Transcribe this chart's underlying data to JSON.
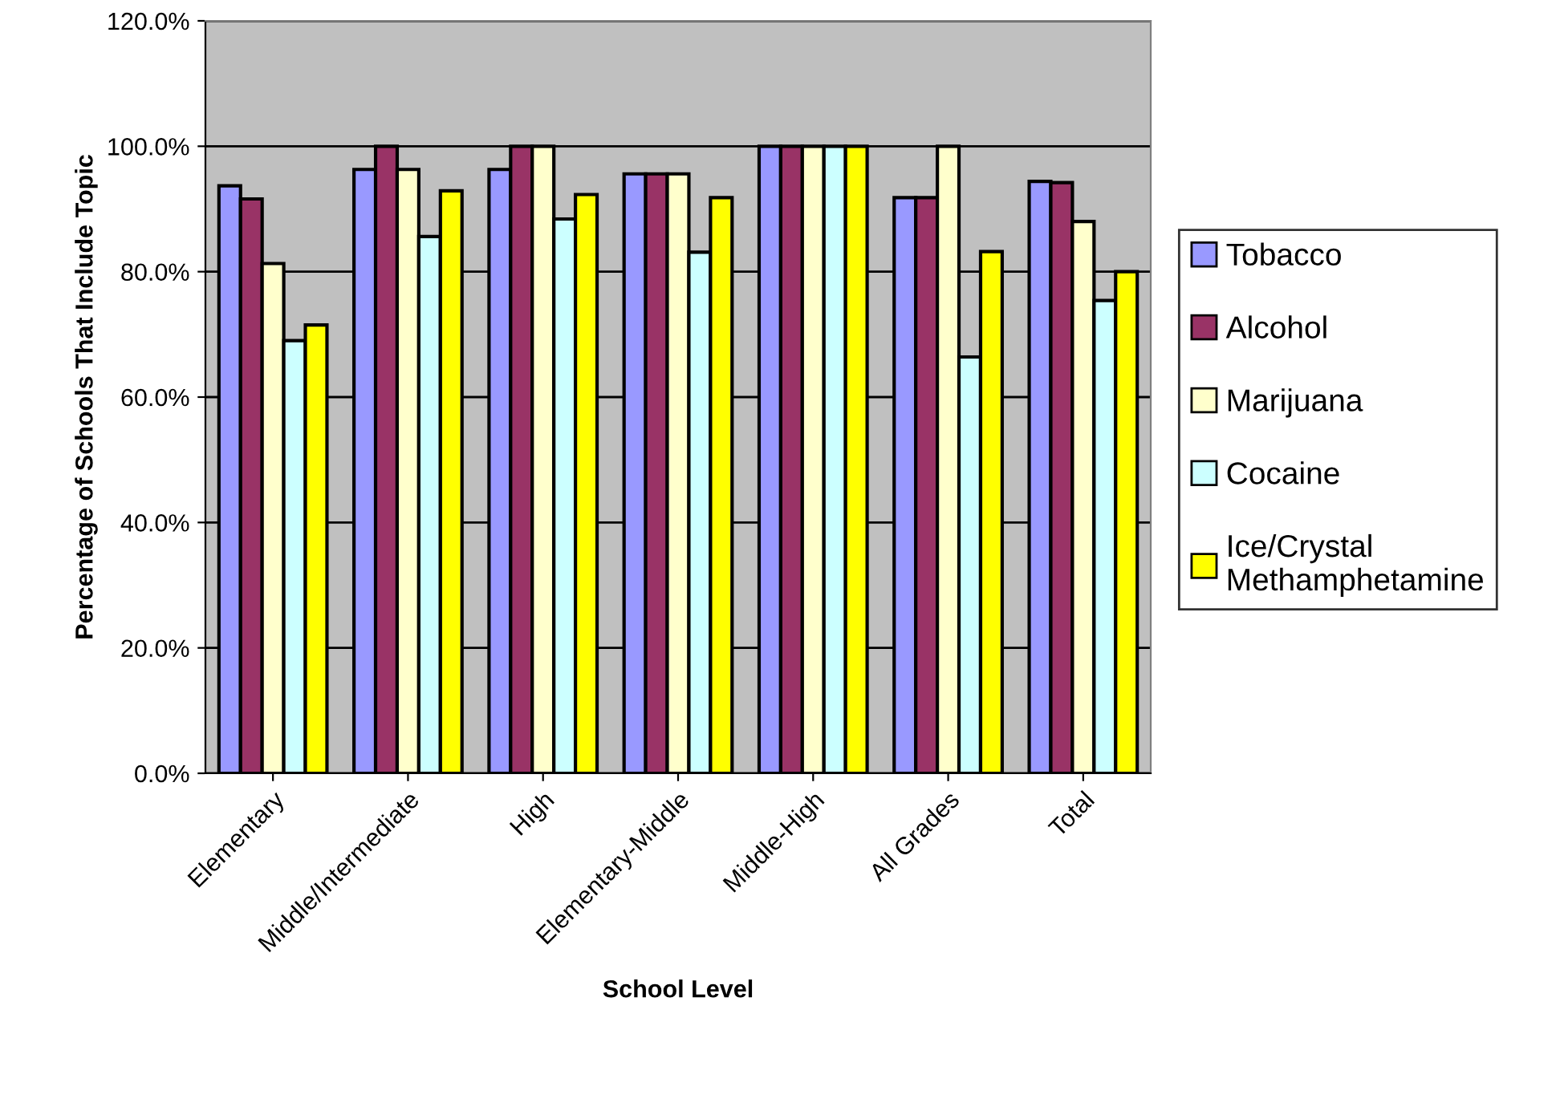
{
  "chart_data": {
    "type": "bar",
    "xlabel": "School Level",
    "ylabel": "Percentage of Schools That Include Topic",
    "categories": [
      "Elementary",
      "Middle/Intermediate",
      "High",
      "Elementary-Middle",
      "Middle-High",
      "All Grades",
      "Total"
    ],
    "series": [
      {
        "name": "Tobacco",
        "color": "#9999ff",
        "values": [
          93.7,
          96.3,
          96.3,
          95.6,
          100,
          91.8,
          94.4
        ]
      },
      {
        "name": "Alcohol",
        "color": "#993366",
        "values": [
          91.6,
          100,
          100,
          95.6,
          100,
          91.8,
          94.2
        ]
      },
      {
        "name": "Marijuana",
        "color": "#ffffcc",
        "values": [
          81.3,
          96.3,
          100,
          95.6,
          100,
          100,
          88.0
        ]
      },
      {
        "name": "Cocaine",
        "color": "#ccffff",
        "values": [
          69.0,
          85.6,
          88.4,
          83.1,
          100,
          66.4,
          75.4
        ]
      },
      {
        "name": "Ice/Crystal\nMethamphetamine",
        "color": "#ffff00",
        "values": [
          71.5,
          92.9,
          92.3,
          91.8,
          100,
          83.2,
          80.0
        ]
      }
    ],
    "ylim": [
      0,
      120
    ],
    "yticks": [
      {
        "value": 0,
        "label": "0.0%"
      },
      {
        "value": 20,
        "label": "20.0%"
      },
      {
        "value": 40,
        "label": "40.0%"
      },
      {
        "value": 60,
        "label": "60.0%"
      },
      {
        "value": 80,
        "label": "80.0%"
      },
      {
        "value": 100,
        "label": "100.0%"
      },
      {
        "value": 120,
        "label": "120.0%"
      }
    ],
    "grid": "y",
    "legend": "right"
  }
}
